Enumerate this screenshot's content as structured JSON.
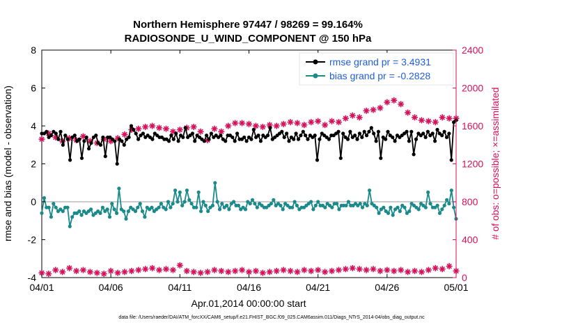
{
  "chart_data": {
    "type": "line",
    "title_line1": "Northern Hemisphere 97447 / 98269 = 99.164%",
    "title_line2": "RADIOSONDE_U_WIND_COMPONENT @ 150 hPa",
    "xlabel": "Apr.01,2014 00:00:00 start",
    "ylabel_left": "rmse and bias (model - observation)",
    "ylabel_right": "# of obs: o=possible; ×=assimilated",
    "footer": "data file: /Users/raeder/DAI/ATM_forcXX/CAM6_setup/f.e21.FHIST_BGC.f09_025.CAM6assim.011/Diags_NTrS_2014-04/obs_diag_output.nc",
    "xlim": [
      0,
      30
    ],
    "ylim_left": [
      -4,
      8
    ],
    "ylim_right": [
      0,
      2400
    ],
    "x_ticks": [
      0,
      5,
      10,
      15,
      20,
      25,
      30
    ],
    "x_tick_labels": [
      "04/01",
      "04/06",
      "04/11",
      "04/16",
      "04/21",
      "04/26",
      "05/01"
    ],
    "y_ticks_left": [
      -4,
      -2,
      0,
      2,
      4,
      6,
      8
    ],
    "y_tick_labels_left": [
      "-4",
      "-2",
      "0",
      "2",
      "4",
      "6",
      "8"
    ],
    "y_ticks_right": [
      0,
      400,
      800,
      1200,
      1600,
      2000,
      2400
    ],
    "y_tick_labels_right": [
      "0",
      "400",
      "800",
      "1200",
      "1600",
      "2000",
      "2400"
    ],
    "colors": {
      "rmse": "#000000",
      "bias": "#1a8a8a",
      "obs": "#d6105a",
      "zero_line": "#bbbbbb"
    },
    "series": [
      {
        "name": "rmse grand pr = 3.4931",
        "axis": "left",
        "values": [
          3.6,
          3.6,
          3.7,
          3.4,
          3.5,
          3.7,
          3.6,
          3.3,
          3.7,
          3.0,
          3.5,
          3.3,
          2.2,
          3.4,
          3.5,
          3.2,
          3.3,
          2.3,
          3.2,
          3.4,
          2.8,
          3.1,
          3.4,
          3.5,
          3.1,
          3.0,
          3.4,
          2.4,
          3.4,
          3.4,
          3.3,
          3.2,
          2.0,
          3.3,
          3.2,
          3.0,
          3.3,
          3.4,
          4.0,
          3.8,
          3.6,
          3.3,
          3.5,
          3.6,
          3.4,
          3.5,
          3.4,
          3.3,
          3.6,
          3.5,
          3.4,
          3.4,
          3.3,
          3.3,
          3.2,
          3.5,
          3.3,
          3.6,
          3.2,
          3.5,
          3.4,
          3.9,
          3.4,
          3.5,
          3.6,
          3.2,
          3.5,
          3.4,
          3.3,
          3.2,
          3.5,
          3.3,
          3.6,
          3.4,
          3.5,
          3.4,
          3.5,
          3.3,
          3.2,
          3.5,
          3.5,
          3.4,
          3.2,
          3.6,
          3.3,
          3.3,
          3.4,
          3.2,
          3.4,
          3.3,
          3.8,
          3.4,
          3.5,
          3.2,
          3.5,
          3.4,
          3.5,
          3.9,
          3.3,
          3.4,
          3.5,
          3.6,
          3.7,
          3.4,
          3.6,
          3.2,
          3.4,
          3.3,
          3.6,
          3.3,
          3.5,
          3.7,
          3.5,
          3.3,
          3.5,
          3.4,
          3.5,
          2.2,
          3.3,
          3.6,
          3.5,
          3.4,
          3.3,
          3.5,
          3.5,
          3.6,
          3.7,
          2.3,
          3.6,
          3.4,
          3.3,
          3.7,
          3.4,
          3.5,
          3.3,
          3.6,
          3.4,
          3.7,
          3.5,
          3.7,
          3.9,
          3.6,
          3.2,
          3.7,
          2.3,
          3.4,
          3.3,
          3.7,
          3.5,
          3.4,
          3.2,
          3.5,
          3.4,
          3.5,
          3.6,
          3.7,
          3.2,
          3.7,
          2.5,
          3.3,
          3.6,
          3.5,
          3.6,
          3.4,
          3.7,
          3.5,
          3.6,
          3.2,
          3.8,
          3.6,
          3.5,
          3.7,
          3.4,
          3.6,
          2.2,
          4.2,
          4.3
        ]
      },
      {
        "name": "bias grand pr = -0.2828",
        "axis": "left",
        "values": [
          -0.6,
          0.2,
          -0.3,
          -0.3,
          -0.8,
          -0.1,
          -0.3,
          -0.5,
          -0.4,
          -0.5,
          -0.3,
          -0.3,
          -1.3,
          -0.8,
          -0.6,
          -0.6,
          -0.5,
          -0.7,
          -0.5,
          -0.6,
          -0.5,
          -0.4,
          -0.7,
          -0.6,
          -0.5,
          -0.6,
          -0.3,
          -0.5,
          -0.4,
          -0.8,
          -0.1,
          -0.4,
          -0.6,
          0.7,
          -0.4,
          -0.5,
          -0.9,
          -0.5,
          -0.3,
          -0.4,
          -0.5,
          -0.3,
          -0.1,
          -0.5,
          -0.8,
          -0.3,
          -0.4,
          -0.3,
          -0.5,
          -0.4,
          -0.3,
          -0.1,
          -0.3,
          -0.4,
          0.0,
          -0.3,
          -0.1,
          0.6,
          0.0,
          0.5,
          -0.2,
          0.0,
          0.6,
          0.1,
          -0.1,
          -0.3,
          -0.3,
          0.5,
          -0.5,
          0.0,
          -0.2,
          -0.5,
          -0.3,
          -0.2,
          1.0,
          0.0,
          -0.4,
          -0.1,
          -0.3,
          -0.2,
          -0.4,
          -0.1,
          0.0,
          -0.2,
          -0.2,
          -0.4,
          -0.3,
          -0.4,
          0.0,
          -0.1,
          0.1,
          -0.1,
          -0.3,
          -0.1,
          -0.2,
          -0.3,
          -0.3,
          -0.2,
          -0.1,
          0.1,
          -0.2,
          -0.1,
          -0.2,
          -0.4,
          -0.1,
          -0.2,
          -0.3,
          -0.3,
          0.0,
          -0.2,
          -0.4,
          -0.3,
          -0.3,
          -0.2,
          -0.1,
          0.0,
          -0.4,
          -0.2,
          0.0,
          -0.2,
          -0.2,
          -0.3,
          -0.1,
          -0.2,
          -0.3,
          -0.1,
          -0.1,
          -0.4,
          -0.2,
          -0.2,
          -0.2,
          0.0,
          -0.2,
          -0.2,
          -0.1,
          -0.2,
          -0.1,
          -0.3,
          -0.1,
          -0.2,
          0.6,
          -0.1,
          -0.2,
          -0.3,
          -0.6,
          -0.4,
          -0.3,
          -0.5,
          -0.6,
          -0.3,
          -0.7,
          -0.4,
          -0.3,
          -0.5,
          -0.2,
          -0.3,
          -0.6,
          -0.5,
          -0.1,
          -0.2,
          -0.3,
          -0.4,
          -0.1,
          -0.2,
          -0.3,
          0.5,
          -0.1,
          -0.3,
          -0.3,
          -0.2,
          -0.6,
          -0.4,
          -0.2,
          0.1,
          -0.1,
          0.6,
          -0.3,
          -0.9
        ]
      },
      {
        "name": "observations assimilated",
        "axis": "right",
        "x": [
          0,
          0.5,
          1,
          1.5,
          2,
          2.5,
          3,
          3.5,
          4,
          4.5,
          5,
          5.5,
          6,
          6.5,
          7,
          7.5,
          8,
          8.5,
          9,
          9.5,
          10,
          10.5,
          11,
          11.5,
          12,
          12.5,
          13,
          13.5,
          14,
          14.5,
          15,
          15.5,
          16,
          16.5,
          17,
          17.5,
          18,
          18.5,
          19,
          19.5,
          20,
          20.5,
          21,
          21.5,
          22,
          22.5,
          23,
          23.5,
          24,
          24.5,
          25,
          25.5,
          26,
          26.5,
          27,
          27.5,
          28,
          28.5,
          29,
          29.5,
          30
        ],
        "high": [
          1460,
          1520,
          1480,
          1440,
          1470,
          1450,
          1490,
          1440,
          1420,
          1460,
          1440,
          1470,
          1510,
          1560,
          1570,
          1590,
          1600,
          1580,
          1570,
          1540,
          1560,
          1580,
          1590,
          1540,
          1450,
          1570,
          1540,
          1600,
          1630,
          1630,
          1620,
          1600,
          1590,
          1610,
          1600,
          1620,
          1640,
          1630,
          1610,
          1640,
          1650,
          1610,
          1650,
          1640,
          1680,
          1710,
          1690,
          1760,
          1770,
          1790,
          1850,
          1870,
          1830,
          1740,
          1690,
          1660,
          1650,
          1640,
          1690,
          1680,
          1680
        ],
        "low": [
          50,
          40,
          80,
          60,
          100,
          70,
          80,
          60,
          50,
          40,
          70,
          50,
          60,
          70,
          80,
          90,
          100,
          80,
          90,
          80,
          130,
          70,
          60,
          50,
          60,
          80,
          70,
          60,
          70,
          80,
          60,
          70,
          50,
          60,
          70,
          80,
          70,
          60,
          80,
          70,
          80,
          60,
          70,
          80,
          90,
          100,
          90,
          80,
          90,
          70,
          80,
          70,
          80,
          60,
          70,
          60,
          80,
          100,
          90,
          120,
          70
        ]
      }
    ]
  }
}
